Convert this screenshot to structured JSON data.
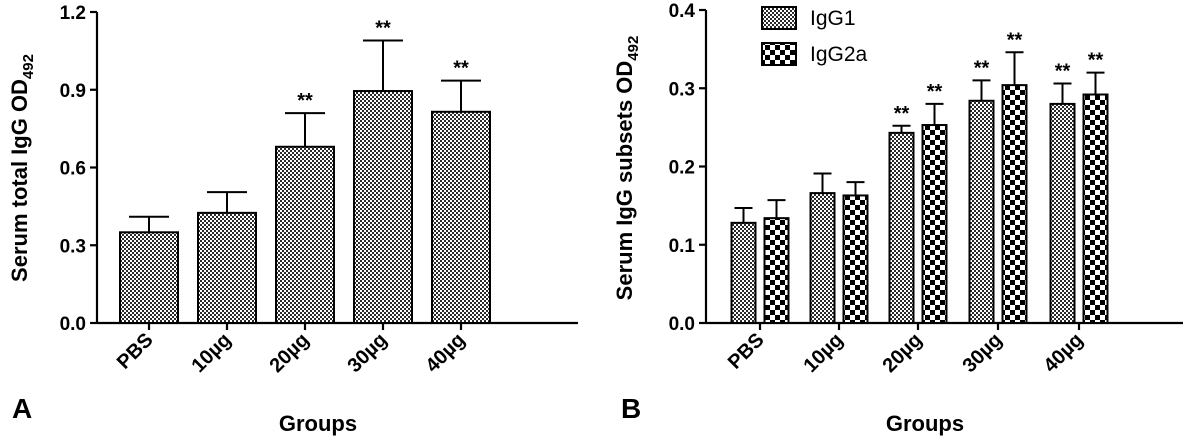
{
  "chart_data": [
    {
      "type": "bar",
      "panel_label": "A",
      "title": "",
      "xlabel": "Groups",
      "ylabel": "Serum total IgG OD",
      "ylabel_sub": "492",
      "ylim": [
        0,
        1.2
      ],
      "yticks": [
        "0.0",
        "0.3",
        "0.6",
        "0.9",
        "1.2"
      ],
      "categories": [
        "PBS",
        "10µg",
        "20µg",
        "30µg",
        "40µg"
      ],
      "series": [
        {
          "values": [
            0.35,
            0.425,
            0.68,
            0.895,
            0.815
          ],
          "errors": [
            0.06,
            0.08,
            0.13,
            0.195,
            0.12
          ],
          "significance": [
            "",
            "",
            "**",
            "**",
            "**"
          ],
          "pattern": "fine-checker"
        }
      ]
    },
    {
      "type": "bar",
      "panel_label": "B",
      "title": "",
      "xlabel": "Groups",
      "ylabel": "Serum IgG subsets OD",
      "ylabel_sub": "492",
      "ylim": [
        0,
        0.4
      ],
      "yticks": [
        "0.0",
        "0.1",
        "0.2",
        "0.3",
        "0.4"
      ],
      "categories": [
        "PBS",
        "10µg",
        "20µg",
        "30µg",
        "40µg"
      ],
      "legend_position": "top",
      "series": [
        {
          "name": "IgG1",
          "values": [
            0.128,
            0.166,
            0.243,
            0.284,
            0.28
          ],
          "errors": [
            0.019,
            0.025,
            0.009,
            0.026,
            0.026
          ],
          "significance": [
            "",
            "",
            "**",
            "**",
            "**"
          ],
          "pattern": "fine-checker"
        },
        {
          "name": "IgG2a",
          "values": [
            0.134,
            0.163,
            0.253,
            0.304,
            0.292
          ],
          "errors": [
            0.023,
            0.017,
            0.027,
            0.042,
            0.028
          ],
          "significance": [
            "",
            "",
            "**",
            "**",
            "**"
          ],
          "pattern": "coarse-checker"
        }
      ]
    }
  ]
}
